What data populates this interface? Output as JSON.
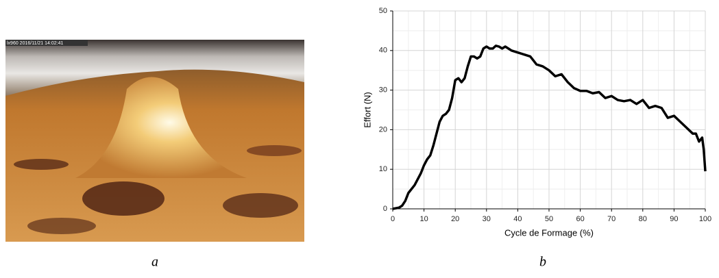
{
  "photo": {
    "timestamp": "lx960  2016/11/21 14:02:41"
  },
  "figure_labels": [
    "a",
    "b"
  ],
  "chart_data": {
    "type": "line",
    "xlabel": "Cycle de Formage (%)",
    "ylabel": "Effort (N)",
    "xlim": [
      0,
      100
    ],
    "ylim": [
      0,
      50
    ],
    "xticks": [
      0,
      10,
      20,
      30,
      40,
      50,
      60,
      70,
      80,
      90,
      100
    ],
    "yticks": [
      0,
      10,
      20,
      30,
      40,
      50
    ],
    "grid": true,
    "minor_grid": true,
    "series": [
      {
        "color": "#000000",
        "x": [
          0,
          2,
          3,
          4,
          5,
          7,
          9,
          10,
          11,
          12,
          13,
          14,
          15,
          16,
          17,
          18,
          19,
          20,
          21,
          22,
          23,
          24,
          25,
          26,
          27,
          28,
          29,
          30,
          31,
          32,
          33,
          34,
          35,
          36,
          37,
          38,
          40,
          42,
          44,
          46,
          48,
          50,
          52,
          54,
          56,
          58,
          60,
          62,
          64,
          66,
          68,
          70,
          72,
          74,
          76,
          78,
          80,
          82,
          84,
          86,
          88,
          90,
          92,
          94,
          96,
          97,
          98,
          99,
          99.5,
          100
        ],
        "values": [
          0,
          0.3,
          0.8,
          2,
          4,
          6,
          9,
          11,
          12.5,
          13.5,
          16,
          19,
          22,
          23.5,
          24,
          25,
          28,
          32.5,
          33,
          32,
          33,
          36,
          38.5,
          38.5,
          38,
          38.5,
          40.5,
          41,
          40.5,
          40.5,
          41.2,
          41,
          40.5,
          41,
          40.5,
          40,
          39.5,
          39,
          38.5,
          36.5,
          36,
          35,
          33.5,
          34,
          32,
          30.5,
          29.8,
          29.8,
          29.2,
          29.5,
          28,
          28.5,
          27.5,
          27.2,
          27.5,
          26.5,
          27.5,
          25.5,
          26,
          25.5,
          23,
          23.5,
          22,
          20.5,
          19,
          19,
          17,
          18,
          15,
          9.5
        ]
      }
    ]
  }
}
